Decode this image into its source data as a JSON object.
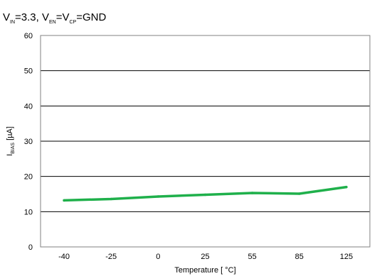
{
  "chart_data": {
    "type": "line",
    "title": {
      "v1": "V",
      "v1_sub": "IN",
      "eq1": "=3.3, ",
      "v2": "V",
      "v2_sub": "EN",
      "eq2": "=",
      "v3": "V",
      "v3_sub": "CP",
      "eq3": "=GND"
    },
    "ylabel": {
      "main": "I",
      "sub": "BIAS",
      "unit": " [µA]"
    },
    "xlabel": "Temperature [ °C]",
    "categories": [
      "-40",
      "-25",
      "0",
      "25",
      "55",
      "85",
      "125"
    ],
    "y_ticks": [
      "0",
      "10",
      "20",
      "30",
      "40",
      "50",
      "60"
    ],
    "ylim": [
      0,
      60
    ],
    "grid": true,
    "series": [
      {
        "values": [
          13.2,
          13.6,
          14.3,
          14.8,
          15.3,
          15.1,
          17.0
        ],
        "color": "#1fb04b"
      }
    ]
  }
}
